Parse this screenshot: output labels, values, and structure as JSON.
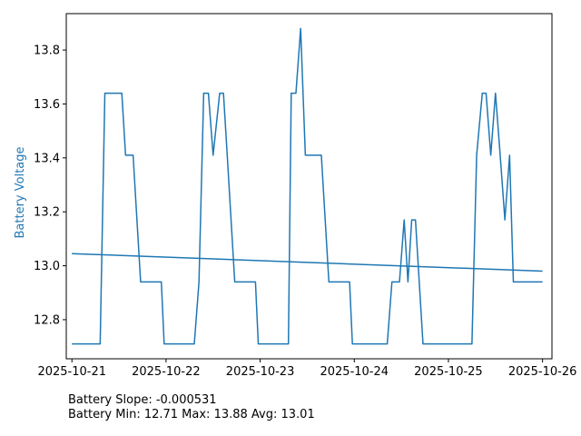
{
  "chart_data": {
    "type": "line",
    "title": "",
    "xlabel": "",
    "ylabel": "Battery Voltage",
    "ylabel_color": "#1f77b4",
    "line_color": "#1f77b4",
    "grid": false,
    "xlim": [
      -0.06,
      5.1
    ],
    "ylim": [
      12.655,
      13.935
    ],
    "x_ticks": [
      {
        "value": 0,
        "label": "2025-10-21"
      },
      {
        "value": 1,
        "label": "2025-10-22"
      },
      {
        "value": 2,
        "label": "2025-10-23"
      },
      {
        "value": 3,
        "label": "2025-10-24"
      },
      {
        "value": 4,
        "label": "2025-10-25"
      },
      {
        "value": 5,
        "label": "2025-10-26"
      }
    ],
    "y_ticks": [
      12.8,
      13.0,
      13.2,
      13.4,
      13.6,
      13.8
    ],
    "series": [
      {
        "kind": "voltage",
        "x": [
          0.0,
          0.3,
          0.35,
          0.53,
          0.57,
          0.65,
          0.73,
          0.95,
          0.98,
          1.3,
          1.35,
          1.4,
          1.45,
          1.5,
          1.57,
          1.61,
          1.65,
          1.73,
          1.95,
          1.98,
          2.3,
          2.33,
          2.38,
          2.43,
          2.48,
          2.53,
          2.65,
          2.73,
          2.95,
          2.98,
          3.35,
          3.4,
          3.48,
          3.53,
          3.57,
          3.61,
          3.65,
          3.73,
          4.0,
          4.25,
          4.3,
          4.36,
          4.4,
          4.45,
          4.5,
          4.55,
          4.6,
          4.65,
          4.69,
          4.73,
          5.0
        ],
        "y": [
          12.71,
          12.71,
          13.64,
          13.64,
          13.41,
          13.41,
          12.94,
          12.94,
          12.71,
          12.71,
          12.94,
          13.64,
          13.64,
          13.41,
          13.64,
          13.64,
          13.41,
          12.94,
          12.94,
          12.71,
          12.71,
          13.64,
          13.64,
          13.88,
          13.41,
          13.41,
          13.41,
          12.94,
          12.94,
          12.71,
          12.71,
          12.94,
          12.94,
          13.17,
          12.94,
          13.17,
          13.17,
          12.71,
          12.71,
          12.71,
          13.41,
          13.64,
          13.64,
          13.41,
          13.64,
          13.41,
          13.17,
          13.41,
          12.94,
          12.94,
          12.94
        ]
      },
      {
        "kind": "trend",
        "x": [
          0.0,
          5.0
        ],
        "y": [
          13.045,
          12.98
        ]
      }
    ]
  },
  "stats": {
    "slope_line": "Battery Slope: -0.000531",
    "minmax_line": "Battery Min: 12.71 Max: 13.88 Avg: 13.01"
  }
}
